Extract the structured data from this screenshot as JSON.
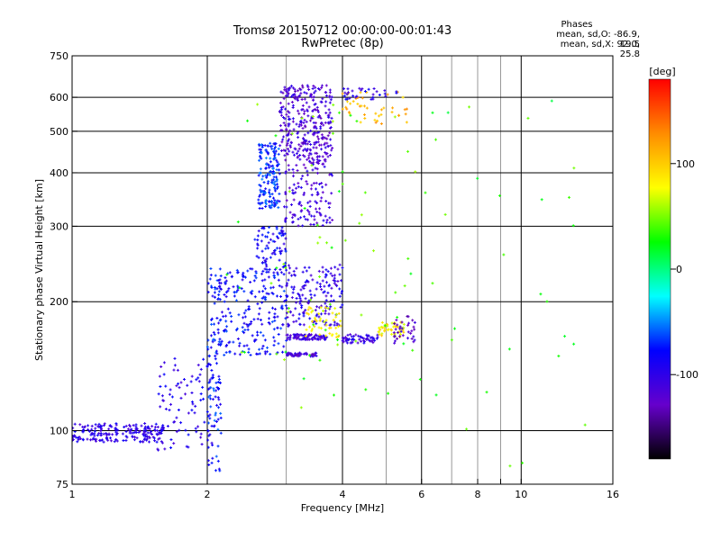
{
  "chart_data": {
    "type": "scatter",
    "title": "Tromsø 20150712 00:00:00-00:01:43",
    "subtitle": "RwPretec (8p)",
    "stats": {
      "header": "Phases",
      "o_mode": "mean, sd,O: -86.9, 19.5",
      "x_mode": "mean, sd,X:  92.0, 25.8"
    },
    "xlabel": "Frequency [MHz]",
    "ylabel": "Stationary phase Virtual Height [km]",
    "x_scale": "log",
    "y_scale": "log",
    "xlim": [
      1,
      16
    ],
    "ylim": [
      75,
      750
    ],
    "x_ticks": [
      1,
      2,
      4,
      6,
      8,
      9,
      10,
      16
    ],
    "x_tick_labels": [
      "1",
      "2",
      "4",
      "6",
      "8",
      "",
      "10",
      "16"
    ],
    "x_grid_major": [
      2,
      4,
      6,
      10
    ],
    "x_grid_minor": [
      3,
      5,
      7,
      8,
      9
    ],
    "y_ticks": [
      75,
      100,
      200,
      300,
      400,
      500,
      600,
      750
    ],
    "y_grid": [
      100,
      200,
      300,
      400,
      500,
      600
    ],
    "colorbar": {
      "label": "[deg]",
      "range": [
        -180,
        180
      ],
      "ticks": [
        100,
        0,
        -100
      ],
      "tick_labels": [
        "100",
        "0",
        "-100"
      ],
      "colors": [
        "#ff0000",
        "#ff8c00",
        "#ffff00",
        "#00ff00",
        "#00ffff",
        "#0000ff",
        "#6600cc",
        "#000000"
      ]
    },
    "clusters": [
      {
        "x": [
          1.0,
          1.6
        ],
        "y": [
          94,
          104
        ],
        "phase": -100,
        "n": 200
      },
      {
        "x": [
          1.55,
          2.1
        ],
        "y": [
          90,
          150
        ],
        "phase": -95,
        "n": 90
      },
      {
        "x": [
          2.0,
          2.15
        ],
        "y": [
          80,
          240
        ],
        "phase": -75,
        "n": 110
      },
      {
        "x": [
          2.1,
          3.0
        ],
        "y": [
          150,
          240
        ],
        "phase": -80,
        "n": 220
      },
      {
        "x": [
          2.6,
          2.9
        ],
        "y": [
          330,
          470
        ],
        "phase": -70,
        "n": 160
      },
      {
        "x": [
          2.55,
          3.0
        ],
        "y": [
          230,
          300
        ],
        "phase": -85,
        "n": 80
      },
      {
        "x": [
          2.9,
          3.8
        ],
        "y": [
          420,
          640
        ],
        "phase": -115,
        "n": 320
      },
      {
        "x": [
          2.95,
          3.8
        ],
        "y": [
          300,
          420
        ],
        "phase": -110,
        "n": 120
      },
      {
        "x": [
          3.0,
          4.0
        ],
        "y": [
          175,
          245
        ],
        "phase": -100,
        "n": 160
      },
      {
        "x": [
          3.0,
          3.7
        ],
        "y": [
          163,
          168
        ],
        "phase": -110,
        "n": 90
      },
      {
        "x": [
          3.0,
          3.5
        ],
        "y": [
          149,
          152
        ],
        "phase": -115,
        "n": 50
      },
      {
        "x": [
          3.3,
          4.0
        ],
        "y": [
          165,
          195
        ],
        "phase": 80,
        "n": 50
      },
      {
        "x": [
          4.0,
          4.8
        ],
        "y": [
          160,
          168
        ],
        "phase": -105,
        "n": 60
      },
      {
        "x": [
          4.8,
          5.5
        ],
        "y": [
          165,
          180
        ],
        "phase": 85,
        "n": 50
      },
      {
        "x": [
          5.2,
          5.8
        ],
        "y": [
          160,
          185
        ],
        "phase": -120,
        "n": 35
      },
      {
        "x": [
          4.0,
          5.6
        ],
        "y": [
          520,
          620
        ],
        "phase": 110,
        "n": 45
      },
      {
        "x": [
          4.0,
          5.3
        ],
        "y": [
          590,
          630
        ],
        "phase": -95,
        "n": 30
      },
      {
        "x": [
          2.2,
          6.0
        ],
        "y": [
          110,
          600
        ],
        "phase": 40,
        "n": 70
      },
      {
        "x": [
          6.0,
          14.0
        ],
        "y": [
          78,
          600
        ],
        "phase": 30,
        "n": 30
      }
    ]
  }
}
